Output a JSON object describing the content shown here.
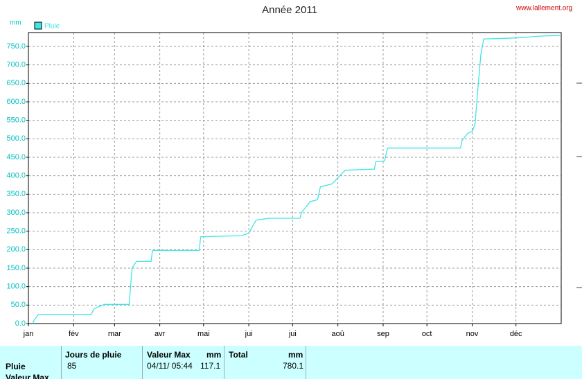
{
  "chart_data": {
    "type": "line",
    "title": "Année 2011",
    "source": "www.lallement.org",
    "y_unit": "mm",
    "legend": "top-left",
    "grid": true,
    "xlim": [
      0,
      365
    ],
    "xticks": [
      {
        "value": 0,
        "label": "jan"
      },
      {
        "value": 31,
        "label": "fév"
      },
      {
        "value": 59,
        "label": "mar"
      },
      {
        "value": 90,
        "label": "avr"
      },
      {
        "value": 120,
        "label": "mai"
      },
      {
        "value": 151,
        "label": "jui"
      },
      {
        "value": 181,
        "label": "jui"
      },
      {
        "value": 212,
        "label": "aoû"
      },
      {
        "value": 243,
        "label": "sep"
      },
      {
        "value": 273,
        "label": "oct"
      },
      {
        "value": 304,
        "label": "nov"
      },
      {
        "value": 334,
        "label": "déc"
      }
    ],
    "ylim": [
      0,
      787.5
    ],
    "yticks": [
      {
        "value": 0,
        "label": "0.0"
      },
      {
        "value": 50,
        "label": "50.0"
      },
      {
        "value": 100,
        "label": "100.0"
      },
      {
        "value": 150,
        "label": "150.0"
      },
      {
        "value": 200,
        "label": "200.0"
      },
      {
        "value": 250,
        "label": "250.0"
      },
      {
        "value": 300,
        "label": "300.0"
      },
      {
        "value": 350,
        "label": "350.0"
      },
      {
        "value": 400,
        "label": "400.0"
      },
      {
        "value": 450,
        "label": "450.0"
      },
      {
        "value": 500,
        "label": "500.0"
      },
      {
        "value": 550,
        "label": "550.0"
      },
      {
        "value": 600,
        "label": "600.0"
      },
      {
        "value": 650,
        "label": "650.0"
      },
      {
        "value": 700,
        "label": "700.0"
      },
      {
        "value": 750,
        "label": "750.0"
      }
    ],
    "series": [
      {
        "name": "Pluie",
        "color": "#3ee6e6",
        "x": [
          3,
          4,
          7,
          43,
          45,
          49,
          52,
          69,
          71,
          74,
          84,
          85,
          117,
          118,
          146,
          151,
          156,
          165,
          186,
          187,
          193,
          198,
          200,
          208,
          217,
          237,
          238,
          244,
          246,
          296,
          297,
          301,
          304,
          306,
          308,
          310,
          312,
          334,
          350,
          365
        ],
        "values": [
          0,
          10,
          25,
          25,
          40,
          47,
          52,
          52,
          150,
          168,
          168,
          198,
          198,
          235,
          238,
          245,
          280,
          285,
          285,
          300,
          330,
          335,
          370,
          378,
          415,
          418,
          438,
          440,
          475,
          475,
          495,
          515,
          520,
          540,
          640,
          730,
          770,
          773,
          778,
          780
        ]
      }
    ]
  },
  "table": {
    "columns": [
      {
        "title": "Jours de pluie"
      },
      {
        "title": "Valeur Max",
        "unit": "mm"
      },
      {
        "title": "Total",
        "unit": "mm"
      }
    ],
    "rows": [
      {
        "label": "Pluie",
        "days": 85,
        "max_date": "04/11/ 05:44",
        "max": 117.1,
        "total": 780.1
      },
      {
        "label": "Valeur Max"
      }
    ]
  }
}
